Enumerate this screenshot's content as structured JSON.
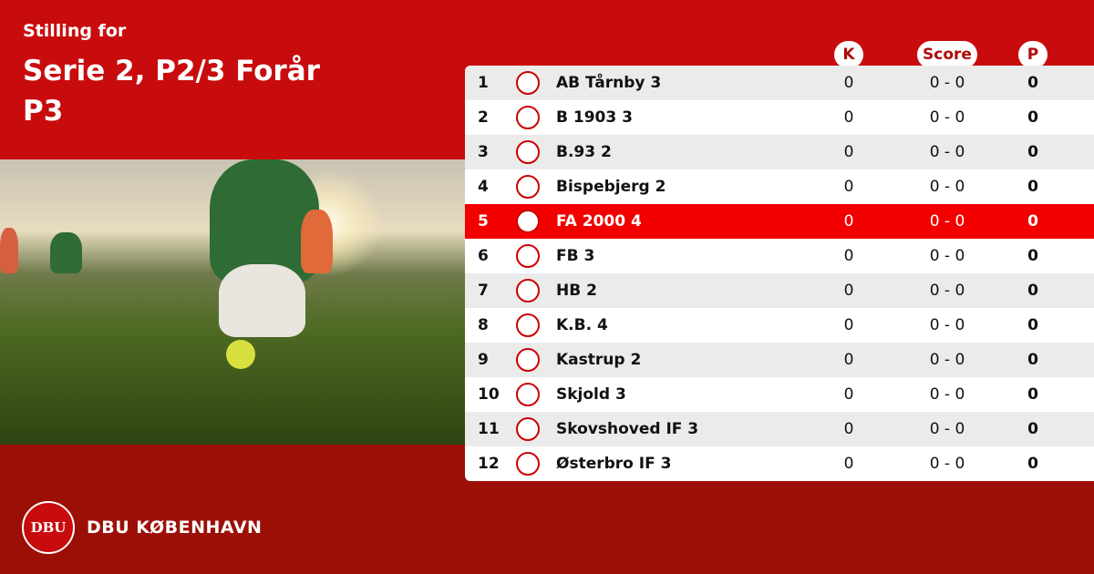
{
  "header": {
    "subtitle": "Stilling for",
    "title": "Serie 2, P2/3 Forår",
    "title_line2": "P3"
  },
  "columns": {
    "k": "K",
    "score": "Score",
    "p": "P"
  },
  "colors": {
    "top": "#c80c0e",
    "bottom": "#9c0f07",
    "highlight": "#f20000"
  },
  "rows": [
    {
      "pos": "1",
      "team": "AB Tårnby 3",
      "k": "0",
      "score": "0 - 0",
      "p": "0"
    },
    {
      "pos": "2",
      "team": "B 1903 3",
      "k": "0",
      "score": "0 - 0",
      "p": "0"
    },
    {
      "pos": "3",
      "team": "B.93 2",
      "k": "0",
      "score": "0 - 0",
      "p": "0"
    },
    {
      "pos": "4",
      "team": "Bispebjerg 2",
      "k": "0",
      "score": "0 - 0",
      "p": "0"
    },
    {
      "pos": "5",
      "team": "FA 2000 4",
      "k": "0",
      "score": "0 - 0",
      "p": "0",
      "highlighted": true
    },
    {
      "pos": "6",
      "team": "FB 3",
      "k": "0",
      "score": "0 - 0",
      "p": "0"
    },
    {
      "pos": "7",
      "team": "HB 2",
      "k": "0",
      "score": "0 - 0",
      "p": "0"
    },
    {
      "pos": "8",
      "team": "K.B. 4",
      "k": "0",
      "score": "0 - 0",
      "p": "0"
    },
    {
      "pos": "9",
      "team": "Kastrup 2",
      "k": "0",
      "score": "0 - 0",
      "p": "0"
    },
    {
      "pos": "10",
      "team": "Skjold 3",
      "k": "0",
      "score": "0 - 0",
      "p": "0"
    },
    {
      "pos": "11",
      "team": "Skovshoved IF 3",
      "k": "0",
      "score": "0 - 0",
      "p": "0"
    },
    {
      "pos": "12",
      "team": "Østerbro IF 3",
      "k": "0",
      "score": "0 - 0",
      "p": "0"
    }
  ],
  "footer": {
    "logo_text": "DBU",
    "brand": "DBU KØBENHAVN"
  }
}
